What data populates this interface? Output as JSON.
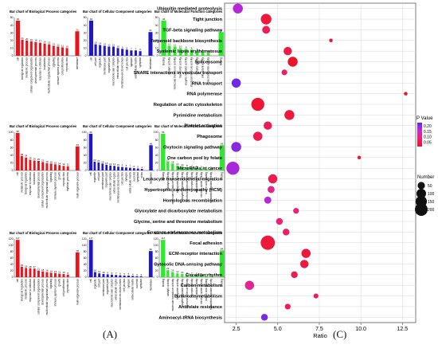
{
  "panel_labels": {
    "a": "(A)",
    "c": "(C)"
  },
  "colors": {
    "bp": "#e8141c",
    "cc": "#1f17c4",
    "mf": "#2ee82e",
    "grid": "#d8d8d8"
  },
  "chart_data": [
    {
      "type": "bar",
      "id": "a11",
      "title": "Bar chart of Biological Process categories",
      "color": "bp",
      "categories": [
        "cell",
        "biological regulation",
        "metabolic process",
        "cellular component organization",
        "developmental process",
        "response to stimulus",
        "localization",
        "multicellular organismal process",
        "signaling",
        "immune system process",
        "cell proliferation",
        "reproduction"
      ],
      "values": [
        46,
        21,
        20,
        19,
        18,
        17,
        16,
        15,
        13,
        12,
        11,
        10
      ],
      "ylim": [
        0,
        50
      ],
      "yticks": [
        0,
        10,
        20,
        30,
        40,
        50
      ],
      "extra": {
        "label": "membrane",
        "value": 32
      }
    },
    {
      "type": "bar",
      "id": "a12",
      "title": "Bar chart of Cellular Component categories",
      "color": "cc",
      "categories": [
        "cell",
        "cell part",
        "organelle",
        "membrane part",
        "organelle part",
        "macromolecular complex",
        "extracellular region",
        "membrane-enclosed lumen",
        "cell junction",
        "synapse",
        "extracellular matrix",
        "symplast"
      ],
      "values": [
        46,
        15,
        14,
        13,
        12,
        12,
        10,
        9,
        8,
        7,
        7,
        6
      ],
      "ylim": [
        0,
        50
      ],
      "yticks": [
        0,
        10,
        20,
        30,
        40,
        50
      ],
      "extra": {
        "label": "membrane",
        "value": 31
      }
    },
    {
      "type": "bar",
      "id": "a13",
      "title": "Bar chart of Molecular Function categories",
      "color": "mf",
      "categories": [
        "binding",
        "catalytic activity",
        "molecular transducer activity",
        "transporter activity",
        "enzyme regulator activity",
        "structural molecule activity",
        "receptor activity",
        "antioxidant activity",
        "electron carrier activity"
      ],
      "values": [
        46,
        13,
        12,
        10,
        9,
        8,
        6,
        5,
        4
      ],
      "ylim": [
        0,
        50
      ],
      "yticks": [
        0,
        10,
        20,
        30,
        40,
        50
      ],
      "extra": {
        "label": "binding",
        "value": 31
      }
    },
    {
      "type": "bar",
      "id": "a21",
      "title": "Bar chart of Biological Process categories",
      "color": "bp",
      "categories": [
        "cell",
        "metabolic process",
        "biological regulation",
        "response to stimulus",
        "localization",
        "developmental process",
        "cellular component organization",
        "multicellular organismal process",
        "signaling",
        "immune system process",
        "growth",
        "reproduction",
        "rhythmic process"
      ],
      "values": [
        98,
        38,
        34,
        28,
        26,
        25,
        22,
        19,
        18,
        16,
        14,
        12,
        11
      ],
      "ylim": [
        0,
        100
      ],
      "yticks": [
        0,
        20,
        40,
        60,
        80,
        100
      ],
      "extra": {
        "label": "multi-organism process",
        "value": 63
      }
    },
    {
      "type": "bar",
      "id": "a22",
      "title": "Bar chart of Cellular Component categories",
      "color": "cc",
      "categories": [
        "cell",
        "organelle",
        "cell part",
        "membrane part",
        "organelle part",
        "macromolecular complex",
        "extracellular region",
        "membrane-enclosed lumen",
        "cell junction",
        "synapse",
        "extracellular matrix",
        "nucleoid",
        "symplast",
        "virion"
      ],
      "values": [
        96,
        23,
        21,
        18,
        15,
        13,
        12,
        10,
        9,
        8,
        7,
        6,
        5,
        4
      ],
      "ylim": [
        0,
        100
      ],
      "yticks": [
        0,
        20,
        40,
        60,
        80,
        100
      ],
      "extra": {
        "label": "membrane",
        "value": 66
      }
    },
    {
      "type": "bar",
      "id": "a23",
      "title": "Bar chart of Molecular Function categories",
      "color": "mf",
      "categories": [
        "binding",
        "catalytic activity",
        "molecular transducer activity",
        "transporter activity",
        "enzyme regulator activity",
        "structural molecule activity",
        "receptor activity",
        "antioxidant activity",
        "electron carrier activity",
        "nucleic acid binding",
        "translation regulator activity"
      ],
      "values": [
        96,
        24,
        18,
        13,
        10,
        8,
        7,
        6,
        5,
        4,
        3
      ],
      "ylim": [
        0,
        100
      ],
      "yticks": [
        0,
        20,
        40,
        60,
        80,
        100
      ],
      "extra": {
        "label": "binding",
        "value": 66
      }
    },
    {
      "type": "bar",
      "id": "a31",
      "title": "Bar chart of Biological Process categories",
      "color": "bp",
      "categories": [
        "cell",
        "biological regulation",
        "metabolic process",
        "response to stimulus",
        "localization",
        "cellular component organization",
        "developmental process",
        "multicellular organismal process",
        "signaling",
        "immune system process",
        "growth",
        "cell proliferation",
        "reproduction"
      ],
      "values": [
        117,
        33,
        29,
        28,
        27,
        21,
        18,
        16,
        14,
        13,
        11,
        10,
        8
      ],
      "ylim": [
        0,
        120
      ],
      "yticks": [
        0,
        20,
        40,
        60,
        80,
        100,
        120
      ],
      "extra": {
        "label": "multi-organism process",
        "value": 78
      }
    },
    {
      "type": "bar",
      "id": "a32",
      "title": "Bar chart of Cellular Component categories",
      "color": "cc",
      "categories": [
        "cell",
        "organelle",
        "cell part",
        "membrane part",
        "organelle part",
        "macromolecular complex",
        "extracellular region",
        "membrane-enclosed lumen",
        "cell junction",
        "synapse",
        "extracellular matrix",
        "nucleoid",
        "symplast"
      ],
      "values": [
        117,
        16,
        12,
        10,
        9,
        8,
        7,
        6,
        5,
        5,
        4,
        3,
        3
      ],
      "ylim": [
        0,
        120
      ],
      "yticks": [
        0,
        20,
        40,
        60,
        80,
        100,
        120
      ],
      "extra": {
        "label": "membrane",
        "value": 82
      }
    },
    {
      "type": "bar",
      "id": "a33",
      "title": "Bar chart of Molecular Function categories",
      "color": "mf",
      "categories": [
        "binding",
        "catalytic activity",
        "molecular transducer activity",
        "transporter activity",
        "enzyme regulator activity",
        "structural molecule activity",
        "receptor activity",
        "antioxidant activity",
        "electron carrier activity",
        "nucleic acid binding",
        "translation regulator activity"
      ],
      "values": [
        117,
        22,
        16,
        12,
        10,
        8,
        7,
        6,
        5,
        4,
        3
      ],
      "ylim": [
        0,
        120
      ],
      "yticks": [
        0,
        20,
        40,
        60,
        80,
        100,
        120
      ],
      "extra": {
        "label": "binding",
        "value": 84
      }
    },
    {
      "type": "scatter",
      "id": "c",
      "xlabel": "Ratio",
      "xlim": [
        1.8,
        13.3
      ],
      "xticks": [
        2.5,
        5.0,
        7.5,
        10.0,
        12.5
      ],
      "grid": true,
      "categories": [
        "Ubiquitin mediated proteolysis",
        "Tight junction",
        "TGF-beta signaling pathway",
        "Terpenoid backbone biosynthesis",
        "Systemic lupus erythematosus",
        "Spliceosome",
        "SNARE interactions in vesicular transport",
        "RNA transport",
        "RNA polymerase",
        "Regulation of actin cytoskeleton",
        "Pyrimidine metabolism",
        "Platelet activation",
        "Phagosome",
        "Oxytocin signaling pathway",
        "One carbon pool by folate",
        "MicroRNAs in cancer",
        "Leukocyte transendothelial migration",
        "Hypertrophic cardiomyopathy (HCM)",
        "Homologous recombination",
        "Glyoxylate and dicarboxylate metabolism",
        "Glycine, serine and threonine metabolism",
        "Fructose and mannose metabolism",
        "Focal adhesion",
        "ECM-receptor interaction",
        "Cytosolic DNA-sensing pathway",
        "Circadian rhythm",
        "Carbon metabolism",
        "Butanoate metabolism",
        "Antifolate resistance",
        "Aminoacyl-tRNA biosynthesis"
      ],
      "ratio": [
        2.6,
        4.3,
        4.3,
        8.2,
        5.6,
        5.9,
        5.4,
        2.5,
        12.7,
        3.8,
        5.7,
        4.4,
        3.8,
        2.5,
        9.9,
        2.3,
        4.7,
        4.6,
        4.4,
        6.1,
        5.1,
        5.5,
        4.4,
        6.7,
        6.6,
        6.0,
        3.3,
        7.3,
        5.6,
        4.2
      ],
      "number": [
        110,
        130,
        60,
        5,
        70,
        110,
        25,
        90,
        5,
        210,
        110,
        70,
        90,
        110,
        5,
        210,
        90,
        45,
        45,
        25,
        40,
        40,
        260,
        90,
        70,
        40,
        90,
        15,
        25,
        40
      ],
      "pvalue": [
        0.17,
        0.03,
        0.06,
        0.02,
        0.04,
        0.01,
        0.08,
        0.22,
        0.01,
        0.02,
        0.03,
        0.06,
        0.05,
        0.2,
        0.02,
        0.18,
        0.05,
        0.11,
        0.17,
        0.09,
        0.09,
        0.07,
        0.03,
        0.03,
        0.04,
        0.05,
        0.11,
        0.06,
        0.06,
        0.21
      ],
      "legend_color": {
        "title": "P Value",
        "ticks": [
          0.2,
          0.15,
          0.1,
          0.05
        ],
        "tick_labels": [
          "0.20",
          "0.15",
          "0.10",
          "0.05"
        ],
        "range": [
          0.01,
          0.23
        ]
      },
      "legend_size": {
        "title": "Number",
        "values": [
          50,
          100,
          150,
          200
        ],
        "labels": [
          "50",
          "100",
          "150",
          "200"
        ]
      }
    }
  ]
}
